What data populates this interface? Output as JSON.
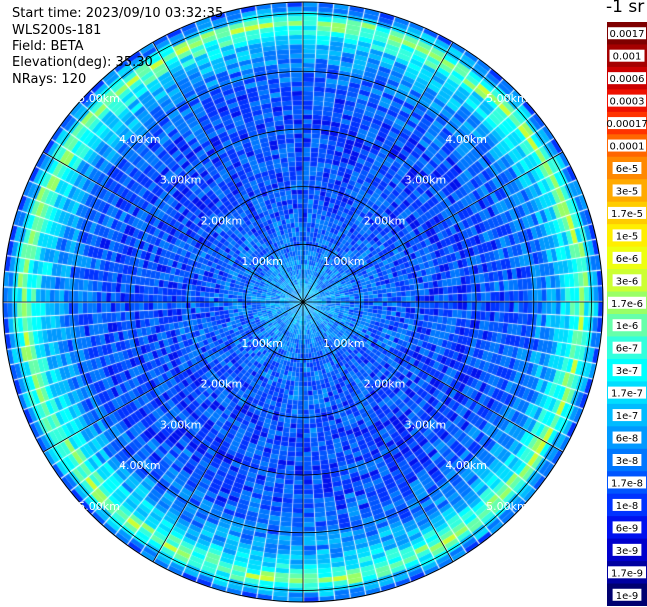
{
  "header": {
    "start_time": "Start time: 2023/09/10 03:32:35",
    "device": "WLS200s-181",
    "field": "Field: BETA",
    "elevation": "Elevation(deg): 35.30",
    "nrays": "NRays: 120"
  },
  "chart_data": {
    "type": "heatmap",
    "projection": "polar-ppi",
    "n_rays": 120,
    "max_range_km": 5.2,
    "range_rings_km": [
      1,
      2,
      3,
      4,
      5
    ],
    "ring_labels": [
      "1.00km",
      "2.00km",
      "3.00km",
      "4.00km",
      "5.00km"
    ],
    "spokes_deg": [
      0,
      30,
      60,
      90,
      120,
      150,
      180,
      210,
      240,
      270,
      300,
      330
    ],
    "colorbar": {
      "title": "-1 sr",
      "ticks": [
        "0.0017",
        "0.001",
        "0.0006",
        "0.0003",
        "0.00017",
        "0.0001",
        "6e-5",
        "3e-5",
        "1.7e-5",
        "1e-5",
        "6e-6",
        "3e-6",
        "1.7e-6",
        "1e-6",
        "6e-7",
        "3e-7",
        "1.7e-7",
        "1e-7",
        "6e-8",
        "3e-8",
        "1.7e-8",
        "1e-8",
        "6e-9",
        "3e-9",
        "1.7e-9",
        "1e-9"
      ],
      "colors": [
        "#7f0000",
        "#a50000",
        "#cc0000",
        "#ee1100",
        "#ff3300",
        "#ff6600",
        "#ff8800",
        "#ffaa00",
        "#ffcc00",
        "#ffee00",
        "#eeff10",
        "#ccff33",
        "#99ff66",
        "#66ffaa",
        "#33ffdd",
        "#00ffff",
        "#00ddff",
        "#00bbff",
        "#0099ff",
        "#0077ff",
        "#0055ff",
        "#0033ff",
        "#0011ee",
        "#0000cc",
        "#0000a0",
        "#000070"
      ]
    },
    "profile_log10": {
      "range_km": [
        0.0,
        0.5,
        1.0,
        1.5,
        2.0,
        2.5,
        3.0,
        3.5,
        4.0,
        4.4,
        4.7,
        4.85,
        5.0,
        5.2
      ],
      "value": [
        -7.0,
        -7.3,
        -7.6,
        -7.75,
        -7.8,
        -7.85,
        -7.85,
        -7.8,
        -7.6,
        -7.1,
        -6.4,
        -5.8,
        -6.8,
        -7.9
      ]
    },
    "colors": {
      "grid": "#000000",
      "ring_label": "#ffffff",
      "background": "#ffffff"
    }
  }
}
